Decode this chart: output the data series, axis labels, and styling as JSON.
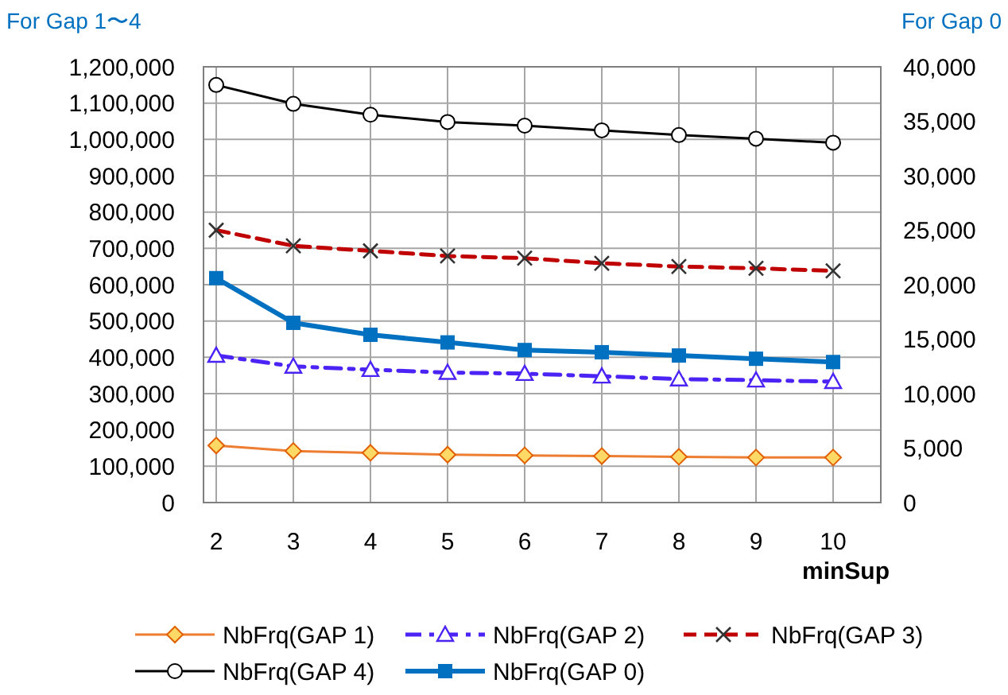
{
  "chart_data": {
    "type": "line",
    "ylabel": "For Gap  1〜4",
    "y2label": "For Gap 0",
    "xlabel": "minSup",
    "x": [
      2,
      3,
      4,
      5,
      6,
      7,
      8,
      9,
      10
    ],
    "xlim": [
      2,
      10
    ],
    "xticks": [
      2,
      3,
      4,
      5,
      6,
      7,
      8,
      9,
      10
    ],
    "ylim": [
      0,
      1200000
    ],
    "yticks": [
      0,
      {
        "value": 100000,
        "label": "100,000"
      },
      {
        "value": 200000,
        "label": "200,000"
      },
      {
        "value": 300000,
        "label": "300,000"
      },
      {
        "value": 400000,
        "label": "400,000"
      },
      {
        "value": 500000,
        "label": "500,000"
      },
      {
        "value": 600000,
        "label": "600,000"
      },
      {
        "value": 700000,
        "label": "700,000"
      },
      {
        "value": 800000,
        "label": "800,000"
      },
      {
        "value": 900000,
        "label": "900,000"
      },
      {
        "value": 1000000,
        "label": "1,000,000"
      },
      {
        "value": 1100000,
        "label": "1,100,000"
      },
      {
        "value": 1200000,
        "label": "1,200,000"
      }
    ],
    "y2lim": [
      0,
      40000
    ],
    "y2ticks": [
      0,
      {
        "value": 5000,
        "label": "5,000"
      },
      {
        "value": 10000,
        "label": "10,000"
      },
      {
        "value": 15000,
        "label": "15,000"
      },
      {
        "value": 20000,
        "label": "20,000"
      },
      {
        "value": 25000,
        "label": "25,000"
      },
      {
        "value": 30000,
        "label": "30,000"
      },
      {
        "value": 35000,
        "label": "35,000"
      },
      {
        "value": 40000,
        "label": "40,000"
      }
    ],
    "grid": true,
    "legend": "bottom",
    "series": [
      {
        "name": "NbFrq(GAP 1)",
        "color": "#ed7d31",
        "marker": "diamond",
        "line_style": "solid",
        "values": [
          157000,
          142000,
          137000,
          132000,
          130000,
          128000,
          126000,
          124000,
          124000
        ]
      },
      {
        "name": "NbFrq(GAP 2)",
        "color": "#4b23f5",
        "marker": "triangle",
        "line_style": "dashdot",
        "values": [
          405000,
          375000,
          366000,
          358000,
          355000,
          348000,
          340000,
          337000,
          333000
        ]
      },
      {
        "name": "NbFrq(GAP 3)",
        "color": "#c00000",
        "marker": "cross",
        "line_style": "dashed",
        "values": [
          750000,
          707000,
          693000,
          679000,
          673000,
          659000,
          650000,
          645000,
          638000
        ]
      },
      {
        "name": "NbFrq(GAP 4)",
        "color": "#000000",
        "marker": "circle",
        "line_style": "solid",
        "values": [
          1150000,
          1098000,
          1068000,
          1048000,
          1038000,
          1025000,
          1012000,
          1002000,
          991000
        ]
      },
      {
        "name": "NbFrq(GAP 0)",
        "color": "#0070c0",
        "marker": "square",
        "line_style": "solid",
        "axis": "y2",
        "values": [
          20600,
          16500,
          15400,
          14700,
          14000,
          13800,
          13500,
          13200,
          12900
        ]
      }
    ]
  }
}
